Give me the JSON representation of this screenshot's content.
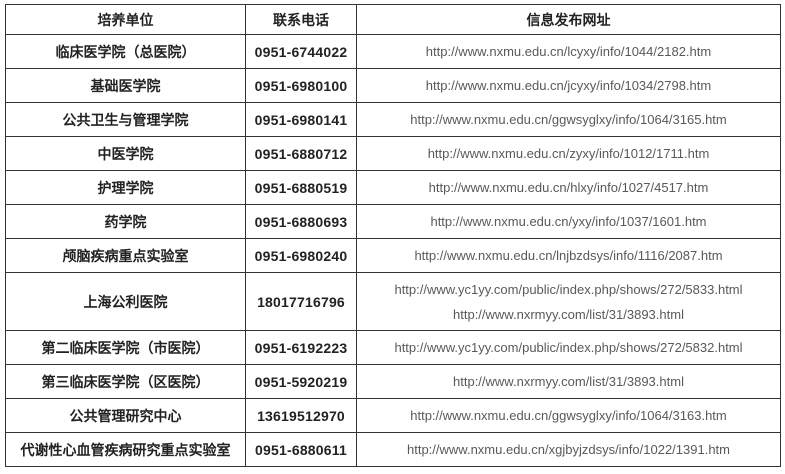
{
  "table": {
    "columns": {
      "unit": "培养单位",
      "phone": "联系电话",
      "url": "信息发布网址"
    },
    "rows": [
      {
        "unit": "临床医学院（总医院）",
        "phone": "0951-6744022",
        "urls": [
          "http://www.nxmu.edu.cn/lcyxy/info/1044/2182.htm"
        ]
      },
      {
        "unit": "基础医学院",
        "phone": "0951-6980100",
        "urls": [
          "http://www.nxmu.edu.cn/jcyxy/info/1034/2798.htm"
        ]
      },
      {
        "unit": "公共卫生与管理学院",
        "phone": "0951-6980141",
        "urls": [
          "http://www.nxmu.edu.cn/ggwsyglxy/info/1064/3165.htm"
        ]
      },
      {
        "unit": "中医学院",
        "phone": "0951-6880712",
        "urls": [
          "http://www.nxmu.edu.cn/zyxy/info/1012/1711.htm"
        ]
      },
      {
        "unit": "护理学院",
        "phone": "0951-6880519",
        "urls": [
          "http://www.nxmu.edu.cn/hlxy/info/1027/4517.htm"
        ]
      },
      {
        "unit": "药学院",
        "phone": "0951-6880693",
        "urls": [
          "http://www.nxmu.edu.cn/yxy/info/1037/1601.htm"
        ]
      },
      {
        "unit": "颅脑疾病重点实验室",
        "phone": "0951-6980240",
        "urls": [
          "http://www.nxmu.edu.cn/lnjbzdsys/info/1116/2087.htm"
        ]
      },
      {
        "unit": "上海公利医院",
        "phone": "18017716796",
        "urls": [
          "http://www.yc1yy.com/public/index.php/shows/272/5833.html",
          "http://www.nxrmyy.com/list/31/3893.html"
        ]
      },
      {
        "unit": "第二临床医学院（市医院）",
        "phone": "0951-6192223",
        "urls": [
          "http://www.yc1yy.com/public/index.php/shows/272/5832.html"
        ]
      },
      {
        "unit": "第三临床医学院（区医院）",
        "phone": "0951-5920219",
        "urls": [
          "http://www.nxrmyy.com/list/31/3893.html"
        ]
      },
      {
        "unit": "公共管理研究中心",
        "phone": "13619512970",
        "urls": [
          "http://www.nxmu.edu.cn/ggwsyglxy/info/1064/3163.htm"
        ]
      },
      {
        "unit": "代谢性心血管疾病研究重点实验室",
        "phone": "0951-6880611",
        "urls": [
          "http://www.nxmu.edu.cn/xgjbyjzdsys/info/1022/1391.htm"
        ]
      }
    ]
  },
  "colors": {
    "border": "#333333",
    "header_text": "#222222",
    "cell_text": "#222222",
    "url_text": "#595959",
    "background": "#ffffff"
  }
}
